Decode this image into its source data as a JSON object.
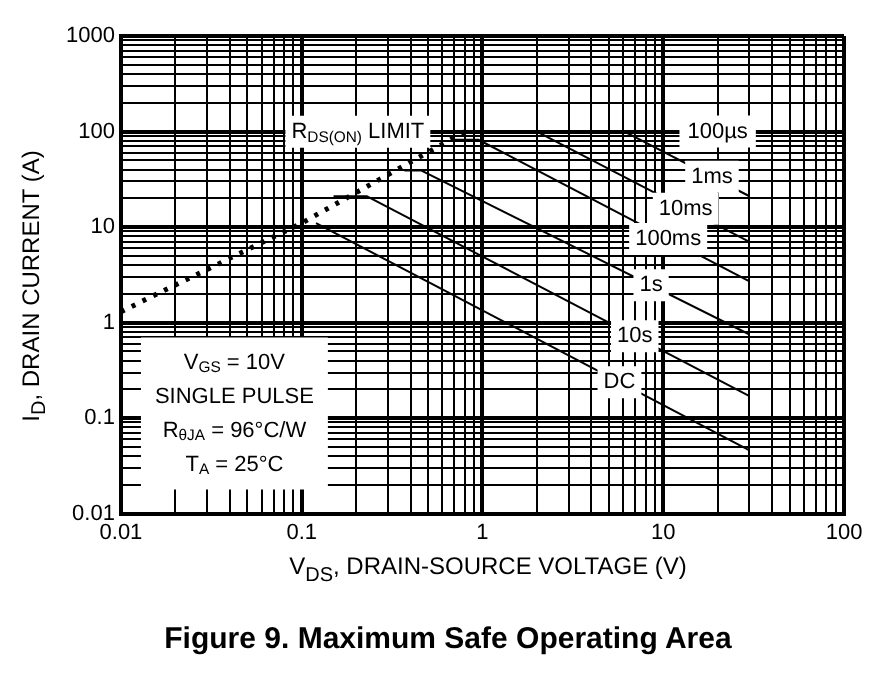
{
  "chart_data": {
    "type": "line",
    "title": "Figure 9. Maximum Safe Operating Area",
    "xlabel": "V$_{DS}$, DRAIN-SOURCE VOLTAGE (V)",
    "ylabel": "I$_{D}$, DRAIN CURRENT (A)",
    "log": "xy",
    "xlim": [
      0.01,
      100
    ],
    "ylim": [
      0.01,
      1000
    ],
    "xticks": [
      0.01,
      0.1,
      1,
      10,
      100
    ],
    "yticks": [
      0.01,
      0.1,
      1,
      10,
      100,
      1000
    ],
    "grid": true,
    "legend": false,
    "marker": "none",
    "annotations": [
      "V$_{GS}$ = 10V",
      "SINGLE PULSE",
      "R$_{θJA}$ = 96°C/W",
      "T$_{A}$ = 25°C",
      {
        "text": "100µs",
        "x": 20,
        "y": 100
      }
    ],
    "series": [
      {
        "name": "R$_{DS(ON)}$ LIMIT",
        "color": "#000000",
        "line_style": "dotted",
        "x": [
          0.01,
          0.1,
          0.8
        ],
        "values": [
          1.3,
          11,
          100
        ]
      },
      {
        "name": "1ms",
        "color": "#000000",
        "line_style": "solid",
        "x": [
          6.1,
          30
        ],
        "values": [
          100,
          21
        ]
      },
      {
        "name": "10ms",
        "color": "#000000",
        "line_style": "solid",
        "x": [
          2,
          30
        ],
        "values": [
          100,
          7
        ]
      },
      {
        "name": "100ms",
        "color": "#000000",
        "line_style": "solid",
        "x": [
          0.67,
          0.95,
          30
        ],
        "values": [
          82,
          82,
          2.7
        ]
      },
      {
        "name": "1s",
        "color": "#000000",
        "line_style": "solid",
        "x": [
          0.37,
          0.46,
          30
        ],
        "values": [
          39,
          39,
          0.75
        ]
      },
      {
        "name": "10s",
        "color": "#000000",
        "line_style": "solid",
        "x": [
          0.15,
          0.23,
          30
        ],
        "values": [
          21,
          21,
          0.17
        ]
      },
      {
        "name": "DC",
        "color": "#000000",
        "line_style": "solid",
        "x": [
          0.12,
          30
        ],
        "values": [
          11,
          0.046
        ]
      }
    ]
  }
}
